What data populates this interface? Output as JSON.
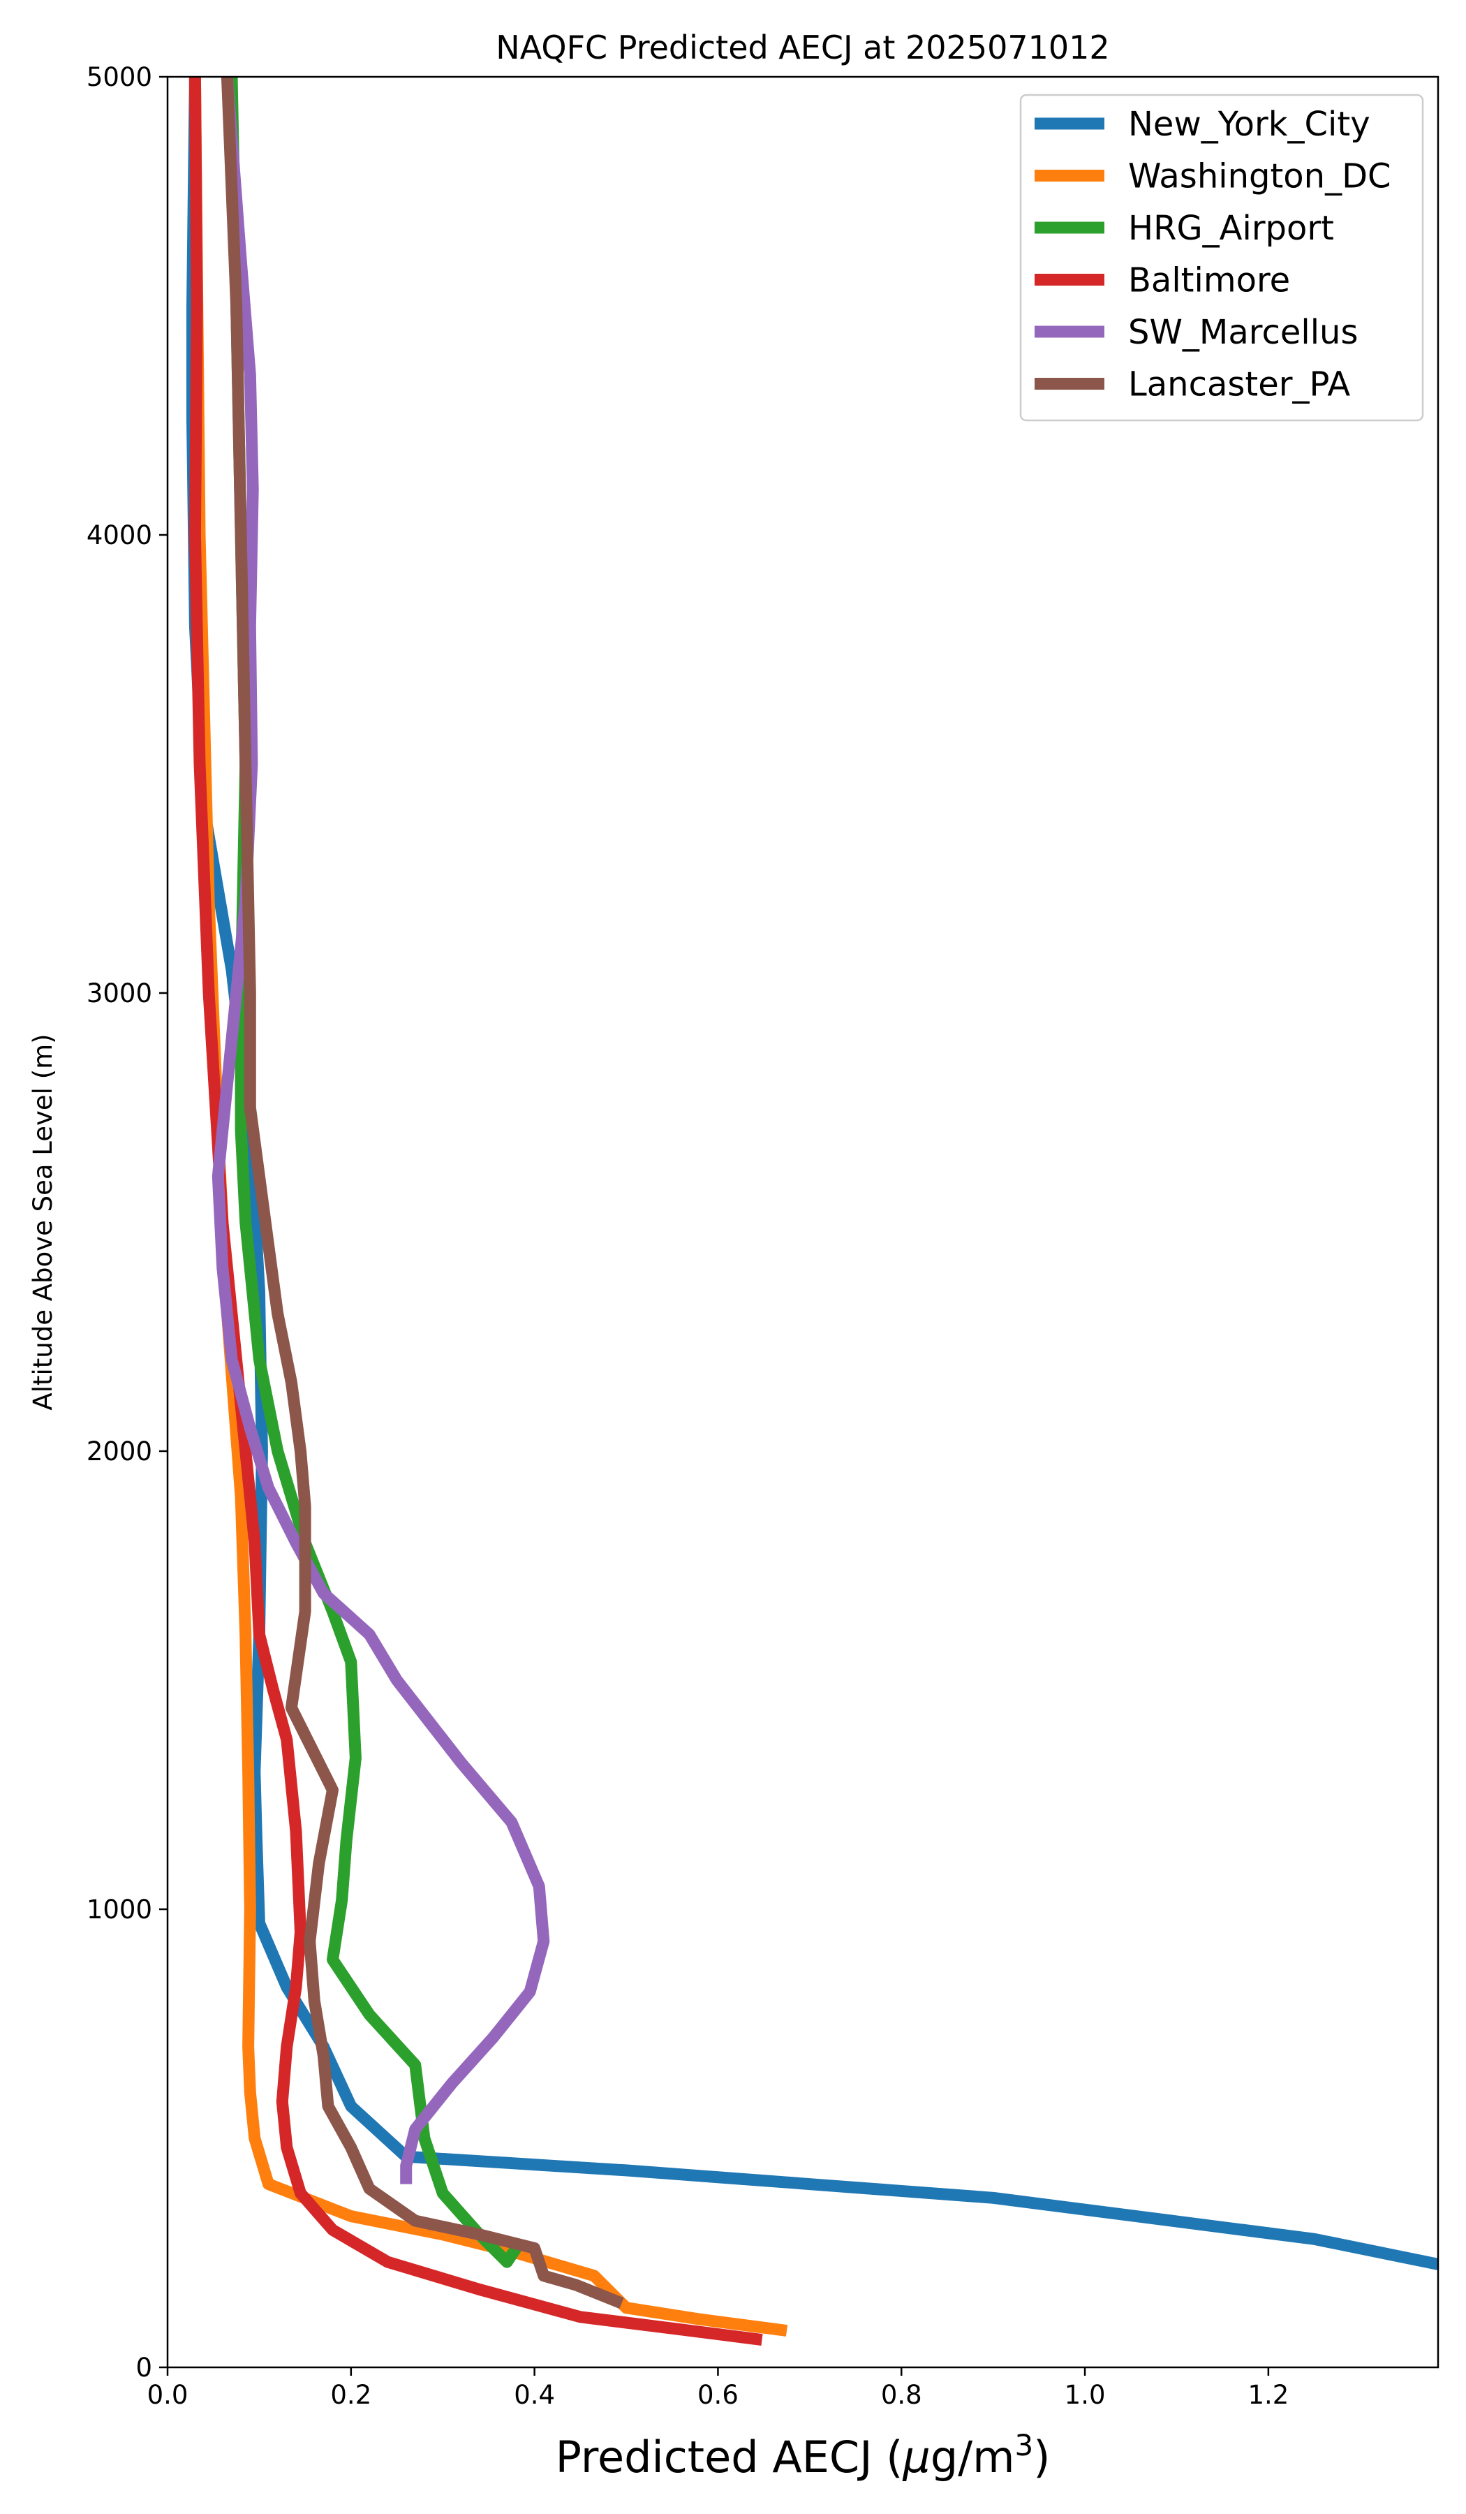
{
  "chart_data": {
    "type": "line",
    "title": "NAQFC Predicted AECJ at 2025071012",
    "xlabel": "Predicted AECJ (",
    "xlabel_mu": "μ",
    "xlabel_unit": "g/m",
    "xlabel_sup": "3",
    "xlabel_close": ")",
    "ylabel": "Altitude Above Sea Level (m)",
    "xlim": [
      0,
      1.385
    ],
    "ylim": [
      0,
      5000
    ],
    "xticks": [
      "0.0",
      "0.2",
      "0.4",
      "0.6",
      "0.8",
      "1.0",
      "1.2"
    ],
    "xtick_values": [
      0,
      0.2,
      0.4,
      0.6,
      0.8,
      1.0,
      1.2
    ],
    "yticks": [
      "0",
      "1000",
      "2000",
      "3000",
      "4000",
      "5000"
    ],
    "ytick_values": [
      0,
      1000,
      2000,
      3000,
      4000,
      5000
    ],
    "grid": false,
    "legend_position": "top-right",
    "series": [
      {
        "name": "New_York_City",
        "color": "#1f77b4",
        "points": [
          [
            0.03,
            5000
          ],
          [
            0.027,
            4500
          ],
          [
            0.027,
            4250
          ],
          [
            0.03,
            3800
          ],
          [
            0.04,
            3400
          ],
          [
            0.07,
            3050
          ],
          [
            0.09,
            2700
          ],
          [
            0.1,
            2350
          ],
          [
            0.103,
            2000
          ],
          [
            0.1,
            1600
          ],
          [
            0.095,
            1300
          ],
          [
            0.097,
            1150
          ],
          [
            0.1,
            970
          ],
          [
            0.13,
            830
          ],
          [
            0.17,
            700
          ],
          [
            0.2,
            570
          ],
          [
            0.26,
            460
          ],
          [
            0.5,
            430
          ],
          [
            0.9,
            370
          ],
          [
            1.25,
            280
          ],
          [
            1.385,
            225
          ]
        ]
      },
      {
        "name": "Washington_DC",
        "color": "#ff7f0e",
        "points": [
          [
            0.03,
            5000
          ],
          [
            0.035,
            4000
          ],
          [
            0.045,
            3200
          ],
          [
            0.055,
            2700
          ],
          [
            0.065,
            2300
          ],
          [
            0.08,
            1900
          ],
          [
            0.085,
            1600
          ],
          [
            0.088,
            1300
          ],
          [
            0.09,
            1000
          ],
          [
            0.088,
            700
          ],
          [
            0.09,
            600
          ],
          [
            0.095,
            500
          ],
          [
            0.11,
            400
          ],
          [
            0.2,
            330
          ],
          [
            0.3,
            290
          ],
          [
            0.38,
            250
          ],
          [
            0.465,
            200
          ],
          [
            0.5,
            130
          ],
          [
            0.58,
            105
          ],
          [
            0.675,
            80
          ]
        ]
      },
      {
        "name": "HRG_Airport",
        "color": "#2ca02c",
        "points": [
          [
            0.07,
            5000
          ],
          [
            0.075,
            4500
          ],
          [
            0.08,
            4000
          ],
          [
            0.085,
            3500
          ],
          [
            0.08,
            3000
          ],
          [
            0.08,
            2700
          ],
          [
            0.085,
            2500
          ],
          [
            0.1,
            2200
          ],
          [
            0.12,
            2000
          ],
          [
            0.15,
            1800
          ],
          [
            0.18,
            1650
          ],
          [
            0.2,
            1540
          ],
          [
            0.205,
            1330
          ],
          [
            0.195,
            1150
          ],
          [
            0.19,
            1020
          ],
          [
            0.18,
            890
          ],
          [
            0.22,
            770
          ],
          [
            0.27,
            660
          ],
          [
            0.28,
            500
          ],
          [
            0.3,
            380
          ],
          [
            0.34,
            290
          ],
          [
            0.37,
            230
          ],
          [
            0.38,
            260
          ]
        ]
      },
      {
        "name": "Baltimore",
        "color": "#d62728",
        "points": [
          [
            0.03,
            5000
          ],
          [
            0.032,
            4500
          ],
          [
            0.03,
            4000
          ],
          [
            0.035,
            3500
          ],
          [
            0.045,
            3000
          ],
          [
            0.06,
            2500
          ],
          [
            0.08,
            2100
          ],
          [
            0.09,
            1900
          ],
          [
            0.095,
            1800
          ],
          [
            0.1,
            1600
          ],
          [
            0.115,
            1480
          ],
          [
            0.13,
            1370
          ],
          [
            0.14,
            1170
          ],
          [
            0.145,
            950
          ],
          [
            0.14,
            830
          ],
          [
            0.13,
            700
          ],
          [
            0.125,
            580
          ],
          [
            0.13,
            480
          ],
          [
            0.145,
            380
          ],
          [
            0.18,
            300
          ],
          [
            0.24,
            230
          ],
          [
            0.34,
            170
          ],
          [
            0.45,
            110
          ],
          [
            0.55,
            85
          ],
          [
            0.648,
            60
          ]
        ]
      },
      {
        "name": "SW_Marcellus",
        "color": "#9467bd",
        "points": [
          [
            0.065,
            5000
          ],
          [
            0.08,
            4600
          ],
          [
            0.09,
            4350
          ],
          [
            0.093,
            4100
          ],
          [
            0.09,
            3800
          ],
          [
            0.092,
            3500
          ],
          [
            0.085,
            3200
          ],
          [
            0.07,
            2900
          ],
          [
            0.06,
            2700
          ],
          [
            0.055,
            2600
          ],
          [
            0.06,
            2400
          ],
          [
            0.07,
            2200
          ],
          [
            0.09,
            2050
          ],
          [
            0.11,
            1920
          ],
          [
            0.14,
            1800
          ],
          [
            0.17,
            1690
          ],
          [
            0.22,
            1600
          ],
          [
            0.25,
            1500
          ],
          [
            0.32,
            1320
          ],
          [
            0.375,
            1190
          ],
          [
            0.405,
            1050
          ],
          [
            0.41,
            930
          ],
          [
            0.395,
            820
          ],
          [
            0.355,
            720
          ],
          [
            0.31,
            620
          ],
          [
            0.27,
            520
          ],
          [
            0.26,
            440
          ],
          [
            0.26,
            400
          ]
        ]
      },
      {
        "name": "Lancaster_PA",
        "color": "#8c564b",
        "points": [
          [
            0.065,
            5000
          ],
          [
            0.075,
            4500
          ],
          [
            0.08,
            4000
          ],
          [
            0.085,
            3500
          ],
          [
            0.09,
            3000
          ],
          [
            0.09,
            2750
          ],
          [
            0.1,
            2600
          ],
          [
            0.11,
            2450
          ],
          [
            0.12,
            2300
          ],
          [
            0.135,
            2150
          ],
          [
            0.145,
            2000
          ],
          [
            0.15,
            1880
          ],
          [
            0.15,
            1650
          ],
          [
            0.135,
            1440
          ],
          [
            0.18,
            1260
          ],
          [
            0.165,
            1100
          ],
          [
            0.155,
            930
          ],
          [
            0.16,
            800
          ],
          [
            0.17,
            680
          ],
          [
            0.175,
            570
          ],
          [
            0.2,
            480
          ],
          [
            0.22,
            390
          ],
          [
            0.27,
            320
          ],
          [
            0.34,
            290
          ],
          [
            0.4,
            260
          ],
          [
            0.41,
            200
          ],
          [
            0.445,
            180
          ],
          [
            0.495,
            140
          ]
        ]
      }
    ]
  }
}
